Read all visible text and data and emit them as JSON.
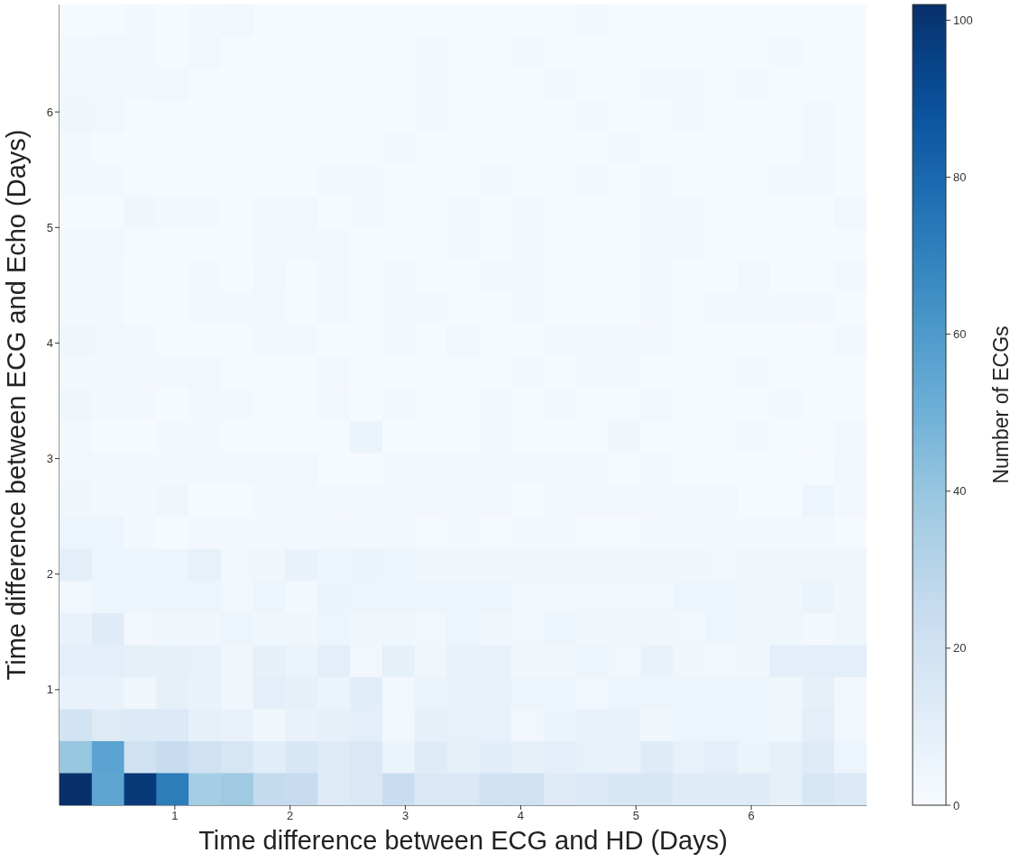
{
  "chart_data": {
    "type": "heatmap",
    "xlabel": "Time difference between ECG and HD (Days)",
    "ylabel": "Time difference between ECG and Echo (Days)",
    "clabel": "Number of ECGs",
    "xlim": [
      0,
      7
    ],
    "ylim": [
      0,
      6.93
    ],
    "xticks": [
      1,
      2,
      3,
      4,
      5,
      6
    ],
    "yticks": [
      1,
      2,
      3,
      4,
      5,
      6
    ],
    "clim": [
      0,
      102
    ],
    "cticks": [
      0,
      20,
      40,
      60,
      80,
      100
    ],
    "cells": [
      [
        1,
        1,
        2,
        1,
        2,
        3,
        1,
        1,
        1,
        1,
        1,
        1,
        1,
        1,
        1,
        1,
        2,
        1,
        1,
        1,
        1,
        1,
        1,
        1,
        1
      ],
      [
        2,
        3,
        2,
        1,
        3,
        1,
        1,
        1,
        1,
        1,
        1,
        2,
        1,
        1,
        2,
        1,
        1,
        1,
        1,
        1,
        1,
        1,
        2,
        1,
        1
      ],
      [
        3,
        2,
        2,
        3,
        1,
        1,
        1,
        1,
        1,
        1,
        1,
        2,
        1,
        1,
        1,
        2,
        1,
        1,
        2,
        2,
        1,
        2,
        1,
        1,
        1
      ],
      [
        4,
        3,
        1,
        1,
        1,
        1,
        1,
        1,
        1,
        1,
        1,
        2,
        1,
        1,
        1,
        1,
        2,
        1,
        1,
        2,
        1,
        1,
        1,
        2,
        1
      ],
      [
        2,
        1,
        1,
        1,
        1,
        1,
        1,
        1,
        1,
        1,
        2,
        1,
        1,
        1,
        1,
        1,
        1,
        2,
        1,
        1,
        1,
        1,
        1,
        2,
        1
      ],
      [
        2,
        2,
        1,
        1,
        1,
        1,
        1,
        1,
        2,
        2,
        1,
        1,
        1,
        2,
        1,
        1,
        2,
        1,
        2,
        1,
        1,
        1,
        2,
        2,
        1
      ],
      [
        1,
        1,
        4,
        2,
        2,
        1,
        2,
        3,
        1,
        2,
        1,
        1,
        2,
        1,
        2,
        1,
        1,
        1,
        2,
        2,
        1,
        1,
        1,
        1,
        3
      ],
      [
        2,
        3,
        1,
        1,
        1,
        1,
        2,
        2,
        2,
        1,
        1,
        1,
        2,
        1,
        2,
        1,
        1,
        1,
        2,
        2,
        1,
        1,
        1,
        1,
        1
      ],
      [
        2,
        2,
        1,
        1,
        2,
        1,
        3,
        1,
        2,
        1,
        2,
        1,
        1,
        2,
        2,
        1,
        1,
        1,
        3,
        1,
        1,
        3,
        1,
        1,
        2
      ],
      [
        2,
        2,
        1,
        1,
        2,
        2,
        2,
        1,
        2,
        1,
        2,
        2,
        1,
        1,
        2,
        1,
        1,
        1,
        2,
        1,
        2,
        2,
        2,
        2,
        1
      ],
      [
        4,
        3,
        2,
        1,
        1,
        1,
        2,
        2,
        1,
        1,
        2,
        1,
        3,
        1,
        1,
        2,
        2,
        2,
        2,
        1,
        1,
        1,
        1,
        1,
        2
      ],
      [
        2,
        2,
        2,
        2,
        3,
        1,
        1,
        1,
        2,
        1,
        1,
        1,
        1,
        1,
        2,
        1,
        2,
        2,
        1,
        1,
        1,
        2,
        1,
        1,
        1
      ],
      [
        4,
        2,
        2,
        1,
        2,
        2,
        1,
        1,
        2,
        1,
        2,
        1,
        1,
        2,
        1,
        2,
        1,
        1,
        3,
        1,
        1,
        1,
        2,
        1,
        1
      ],
      [
        2,
        1,
        1,
        2,
        2,
        1,
        1,
        1,
        1,
        6,
        1,
        1,
        1,
        2,
        1,
        1,
        1,
        4,
        1,
        1,
        1,
        2,
        1,
        1,
        2
      ],
      [
        3,
        2,
        2,
        2,
        2,
        2,
        3,
        3,
        1,
        1,
        2,
        2,
        2,
        2,
        2,
        2,
        2,
        1,
        2,
        1,
        1,
        1,
        1,
        1,
        3
      ],
      [
        4,
        2,
        2,
        4,
        1,
        1,
        2,
        2,
        2,
        2,
        2,
        2,
        2,
        2,
        1,
        2,
        2,
        2,
        2,
        2,
        3,
        1,
        1,
        5,
        2
      ],
      [
        5,
        5,
        2,
        1,
        2,
        2,
        2,
        2,
        2,
        2,
        2,
        1,
        2,
        1,
        2,
        2,
        1,
        1,
        2,
        2,
        2,
        2,
        2,
        2,
        1
      ],
      [
        10,
        5,
        5,
        5,
        8,
        3,
        4,
        7,
        5,
        6,
        5,
        4,
        4,
        4,
        4,
        4,
        4,
        4,
        4,
        4,
        3,
        4,
        4,
        4,
        4
      ],
      [
        3,
        5,
        5,
        5,
        5,
        3,
        5,
        2,
        6,
        5,
        5,
        5,
        5,
        5,
        3,
        3,
        3,
        3,
        3,
        5,
        5,
        4,
        4,
        6,
        4
      ],
      [
        7,
        12,
        3,
        4,
        4,
        5,
        4,
        4,
        5,
        4,
        4,
        3,
        5,
        4,
        3,
        5,
        4,
        4,
        4,
        3,
        5,
        4,
        4,
        2,
        4
      ],
      [
        10,
        10,
        9,
        9,
        8,
        4,
        9,
        6,
        10,
        3,
        9,
        4,
        8,
        8,
        4,
        4,
        5,
        3,
        7,
        4,
        2,
        4,
        10,
        10,
        10
      ],
      [
        7,
        7,
        4,
        9,
        7,
        4,
        10,
        9,
        6,
        11,
        3,
        6,
        7,
        7,
        5,
        5,
        3,
        5,
        5,
        5,
        5,
        5,
        4,
        9,
        3
      ],
      [
        19,
        13,
        14,
        14,
        9,
        7,
        4,
        7,
        9,
        10,
        3,
        9,
        8,
        8,
        3,
        6,
        7,
        8,
        4,
        5,
        5,
        5,
        4,
        10,
        3
      ],
      [
        40,
        56,
        20,
        25,
        20,
        17,
        11,
        16,
        13,
        15,
        6,
        12,
        9,
        11,
        9,
        10,
        8,
        7,
        12,
        8,
        10,
        6,
        9,
        13,
        5
      ],
      [
        102,
        55,
        98,
        72,
        36,
        38,
        26,
        25,
        13,
        15,
        24,
        15,
        15,
        20,
        20,
        13,
        14,
        16,
        16,
        12,
        12,
        12,
        9,
        17,
        14
      ]
    ]
  }
}
